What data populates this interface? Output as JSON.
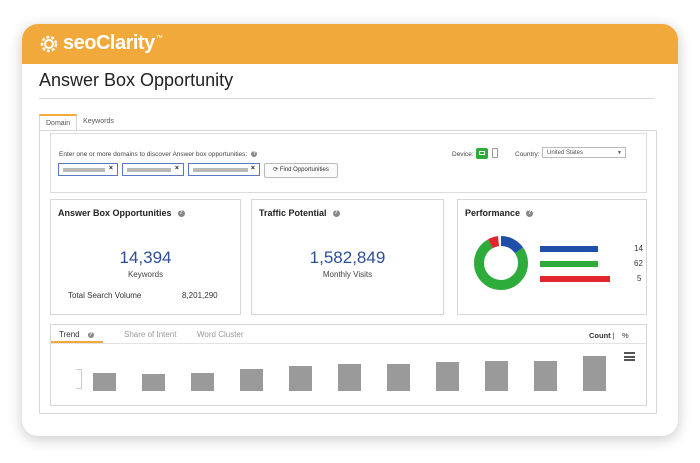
{
  "brand": {
    "logo_text": "seoClarity",
    "tm": "™",
    "accent": "#f2a93b"
  },
  "page": {
    "title": "Answer Box Opportunity"
  },
  "tabs": [
    {
      "label": "Domain",
      "active": true
    },
    {
      "label": "Keywords",
      "active": false
    }
  ],
  "filters": {
    "prompt": "Enter one or more domains to discover Answer box opportunities:",
    "domains": [
      {
        "value": "",
        "remove": "×"
      },
      {
        "value": "",
        "remove": "×"
      },
      {
        "value": "",
        "remove": "×"
      }
    ],
    "find_button": "Find Opportunities",
    "device_label": "Device:",
    "device_selected": "desktop",
    "country_label": "Country:",
    "country_value": "United States"
  },
  "kpis": {
    "answer_box": {
      "title": "Answer Box Opportunities",
      "value": "14,394",
      "unit": "Keywords",
      "total_label": "Total Search Volume",
      "total_value": "8,201,290"
    },
    "traffic": {
      "title": "Traffic Potential",
      "value": "1,582,849",
      "unit": "Monthly Visits"
    },
    "performance": {
      "title": "Performance",
      "segments": [
        {
          "value": 14,
          "label": "14",
          "color": "#1f4fa8"
        },
        {
          "value": 62,
          "label": "62",
          "color": "#2eac3b"
        },
        {
          "value": 5,
          "label": "5",
          "color": "#e0262e"
        }
      ]
    }
  },
  "trend": {
    "tabs": [
      {
        "label": "Trend",
        "active": true
      },
      {
        "label": "Share of Intent",
        "active": false
      },
      {
        "label": "Word Cluster",
        "active": false
      }
    ],
    "count_label": "Count",
    "separator": "|",
    "pct_label": "%",
    "bar_heights": [
      0.48,
      0.46,
      0.48,
      0.58,
      0.66,
      0.72,
      0.72,
      0.76,
      0.78,
      0.8,
      0.92
    ],
    "bar_color": "#9a9a9a"
  }
}
